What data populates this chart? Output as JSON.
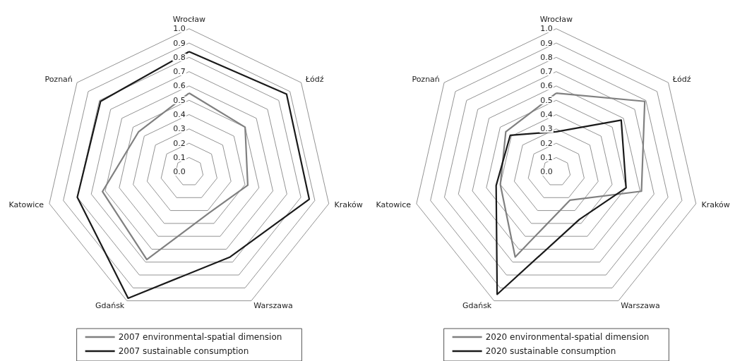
{
  "chart_data": [
    {
      "type": "radar",
      "categories": [
        "Wrocław",
        "Łódź",
        "Kraków",
        "Warszawa",
        "Gdańsk",
        "Katowice",
        "Poznań"
      ],
      "series": [
        {
          "name": "2007 environmental-spatial dimension",
          "color": "#808080",
          "values": [
            0.55,
            0.5,
            0.42,
            0.32,
            0.68,
            0.62,
            0.45
          ]
        },
        {
          "name": "2007 sustainable consumption",
          "color": "#1a1a1a",
          "values": [
            0.84,
            0.87,
            0.86,
            0.66,
            0.98,
            0.8,
            0.79
          ]
        }
      ],
      "ylim": [
        0,
        1
      ],
      "yticks": [
        {
          "value": 0,
          "label": "0.0"
        },
        {
          "value": 0.1,
          "label": "0.1"
        },
        {
          "value": 0.2,
          "label": "0.2"
        },
        {
          "value": 0.3,
          "label": "0.3"
        },
        {
          "value": 0.4,
          "label": "0.4"
        },
        {
          "value": 0.5,
          "label": "0.5"
        },
        {
          "value": 0.6,
          "label": "0.6"
        },
        {
          "value": 0.7,
          "label": "0.7"
        },
        {
          "value": 0.8,
          "label": "0.8"
        },
        {
          "value": 0.9,
          "label": "0.9"
        },
        {
          "value": 1,
          "label": "1.0"
        }
      ],
      "grid": true,
      "legend": "bottom",
      "marker": "none",
      "line_style": "solid"
    },
    {
      "type": "radar",
      "categories": [
        "Wrocław",
        "Łódź",
        "Kraków",
        "Warszawa",
        "Gdańsk",
        "Katowice",
        "Poznań"
      ],
      "series": [
        {
          "name": "2020 environmental-spatial dimension",
          "color": "#808080",
          "values": [
            0.55,
            0.79,
            0.61,
            0.22,
            0.66,
            0.4,
            0.45
          ]
        },
        {
          "name": "2020 sustainable consumption",
          "color": "#1a1a1a",
          "values": [
            0.28,
            0.58,
            0.5,
            0.37,
            0.95,
            0.43,
            0.41
          ]
        }
      ],
      "ylim": [
        0,
        1
      ],
      "yticks": [
        {
          "value": 0,
          "label": "0.0"
        },
        {
          "value": 0.1,
          "label": "0.1"
        },
        {
          "value": 0.2,
          "label": "0.2"
        },
        {
          "value": 0.3,
          "label": "0.3"
        },
        {
          "value": 0.4,
          "label": "0.4"
        },
        {
          "value": 0.5,
          "label": "0.5"
        },
        {
          "value": 0.6,
          "label": "0.6"
        },
        {
          "value": 0.7,
          "label": "0.7"
        },
        {
          "value": 0.8,
          "label": "0.8"
        },
        {
          "value": 0.9,
          "label": "0.9"
        },
        {
          "value": 1,
          "label": "1.0"
        }
      ],
      "grid": true,
      "legend": "bottom",
      "marker": "none",
      "line_style": "solid"
    }
  ]
}
